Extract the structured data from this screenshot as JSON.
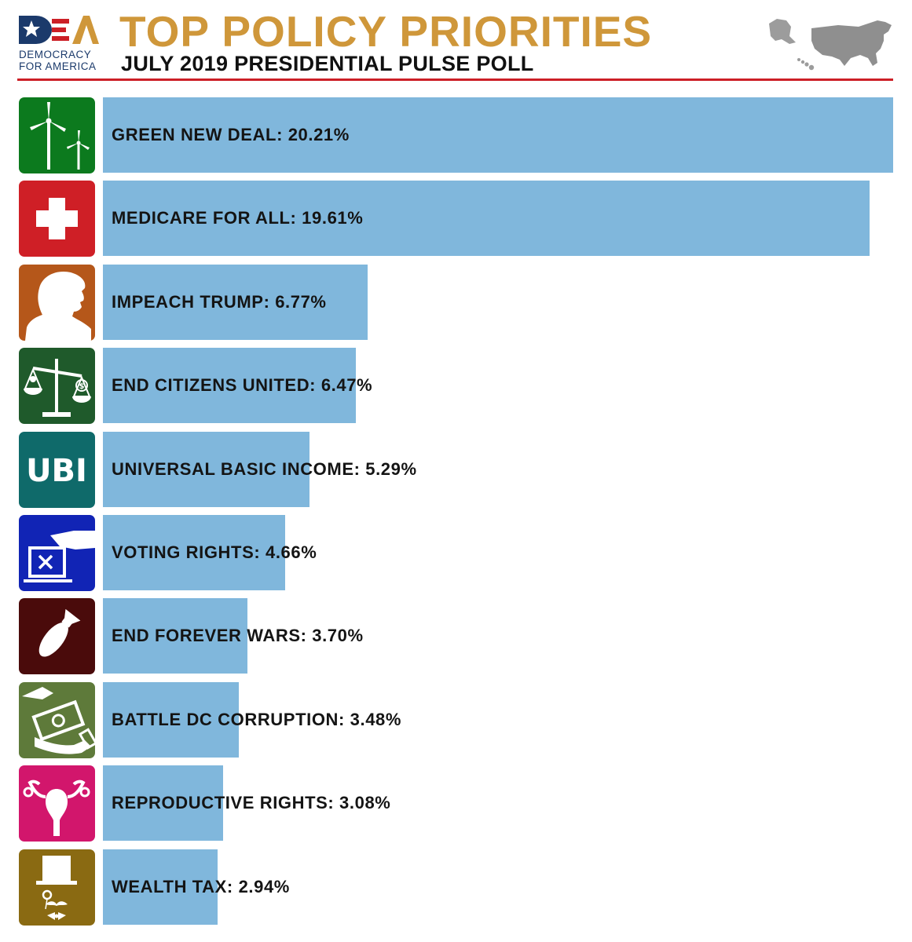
{
  "header": {
    "title": "TOP POLICY PRIORITIES",
    "subtitle": "JULY 2019 PRESIDENTIAL PULSE POLL",
    "logo_mark": "DFA",
    "logo_line1": "DEMOCRACY",
    "logo_line2": "FOR AMERICA"
  },
  "colors": {
    "title": "#cf973a",
    "bar": "#80b7dc",
    "rule": "#cc1f26"
  },
  "chart_data": {
    "type": "bar",
    "orientation": "horizontal",
    "title": "TOP POLICY PRIORITIES",
    "subtitle": "JULY 2019 PRESIDENTIAL PULSE POLL",
    "categories": [
      "GREEN NEW DEAL",
      "MEDICARE FOR ALL",
      "IMPEACH TRUMP",
      "END CITIZENS UNITED",
      "UNIVERSAL BASIC INCOME",
      "VOTING RIGHTS",
      "END FOREVER WARS",
      "BATTLE DC CORRUPTION",
      "REPRODUCTIVE RIGHTS",
      "WEALTH TAX"
    ],
    "values": [
      20.21,
      19.61,
      6.77,
      6.47,
      5.29,
      4.66,
      3.7,
      3.48,
      3.08,
      2.94
    ],
    "labels": [
      "GREEN NEW DEAL: 20.21%",
      "MEDICARE FOR ALL: 19.61%",
      "IMPEACH TRUMP: 6.77%",
      "END CITIZENS UNITED: 6.47%",
      "UNIVERSAL BASIC INCOME: 5.29%",
      "VOTING RIGHTS: 4.66%",
      "END FOREVER WARS: 3.70%",
      "BATTLE DC CORRUPTION: 3.48%",
      "REPRODUCTIVE RIGHTS: 3.08%",
      "WEALTH TAX: 2.94%"
    ],
    "icons": [
      "wind-turbine-icon",
      "medical-cross-icon",
      "trump-silhouette-icon",
      "scales-icon",
      "ubi-icon",
      "ballot-box-icon",
      "bomb-icon",
      "bribe-money-icon",
      "uterus-icon",
      "top-hat-monocle-icon"
    ],
    "icon_colors": [
      "#0c7a1e",
      "#cf1f26",
      "#b5571a",
      "#1f5a2b",
      "#0f6a6a",
      "#1124b5",
      "#4a0b0b",
      "#5e7a3a",
      "#d2166c",
      "#8a6a12"
    ],
    "icon_text": [
      "",
      "",
      "",
      "",
      "UBI",
      "",
      "",
      "",
      "",
      ""
    ],
    "xlim": [
      0,
      20.21
    ],
    "grid": false,
    "legend": "none"
  }
}
